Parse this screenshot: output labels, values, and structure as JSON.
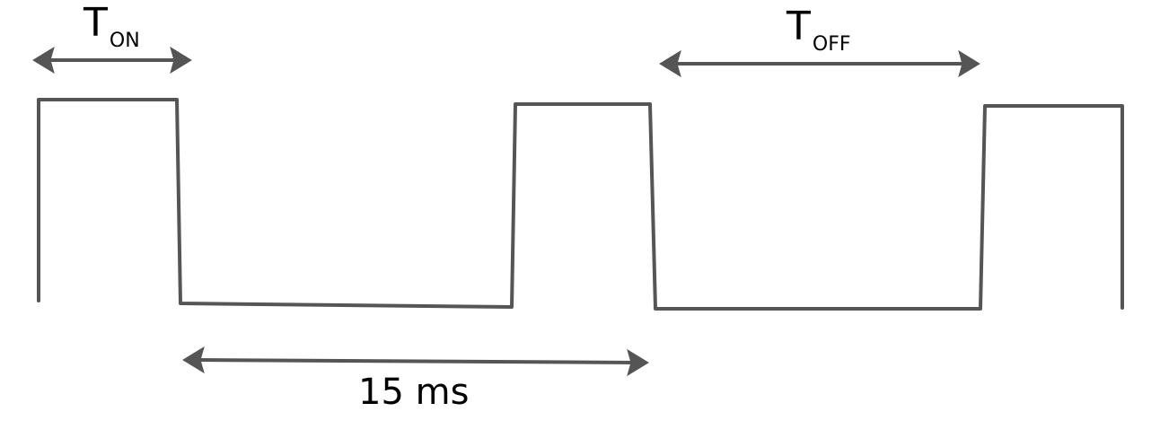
{
  "colors": {
    "stroke": "#555555",
    "text": "#000000",
    "background": "#ffffff"
  },
  "labels": {
    "t_on": {
      "main": "T",
      "sub": "ON"
    },
    "t_off": {
      "main": "T",
      "sub": "OFF"
    },
    "period": "15 ms"
  }
}
